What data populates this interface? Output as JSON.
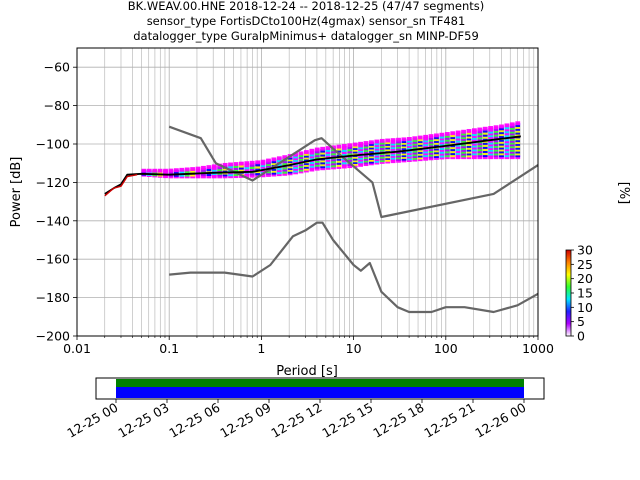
{
  "chart_data": {
    "type": "heatmap",
    "title": [
      "BK.WEAV.00.HNE   2018-12-24 -- 2018-12-25  (47/47 segments)",
      "sensor_type FortisDCto100Hz(4gmax) sensor_sn TF481",
      "datalogger_type GuralpMinimus+ datalogger_sn MINP-DF59"
    ],
    "xlabel": "Period [s]",
    "ylabel": "Power [dB]",
    "xscale": "log",
    "xlim": [
      0.01,
      1000
    ],
    "ylim": [
      -200,
      -50
    ],
    "grid": true,
    "x_ticks": [
      {
        "v": 0.01,
        "label": "0.01"
      },
      {
        "v": 0.1,
        "label": "0.1"
      },
      {
        "v": 1,
        "label": "1"
      },
      {
        "v": 10,
        "label": "10"
      },
      {
        "v": 100,
        "label": "100"
      },
      {
        "v": 1000,
        "label": "1000"
      }
    ],
    "y_ticks": [
      {
        "v": -60,
        "label": "−60"
      },
      {
        "v": -80,
        "label": "−80"
      },
      {
        "v": -100,
        "label": "−100"
      },
      {
        "v": -120,
        "label": "−120"
      },
      {
        "v": -140,
        "label": "−140"
      },
      {
        "v": -160,
        "label": "−160"
      },
      {
        "v": -180,
        "label": "−180"
      },
      {
        "v": -200,
        "label": "−200"
      }
    ],
    "series": [
      {
        "kind": "reference",
        "color": "#666666",
        "points": [
          [
            0.1,
            -91
          ],
          [
            0.22,
            -97
          ],
          [
            0.32,
            -110
          ],
          [
            0.8,
            -119
          ],
          [
            3.8,
            -98
          ],
          [
            4.5,
            -97
          ],
          [
            6.5,
            -104
          ],
          [
            16,
            -120
          ],
          [
            20,
            -138
          ],
          [
            330,
            -126
          ],
          [
            1000,
            -111
          ]
        ]
      },
      {
        "kind": "reference",
        "color": "#666666",
        "points": [
          [
            0.1,
            -168
          ],
          [
            0.17,
            -167
          ],
          [
            0.4,
            -167
          ],
          [
            0.8,
            -169
          ],
          [
            1.25,
            -163
          ],
          [
            2.2,
            -148
          ],
          [
            3.0,
            -145
          ],
          [
            4.0,
            -141
          ],
          [
            4.6,
            -141
          ],
          [
            6.0,
            -150
          ],
          [
            10,
            -163
          ],
          [
            12,
            -166
          ],
          [
            15,
            -162
          ],
          [
            20,
            -177
          ],
          [
            30,
            -185
          ],
          [
            40,
            -187.5
          ],
          [
            70,
            -187.5
          ],
          [
            100,
            -185
          ],
          [
            160,
            -185
          ],
          [
            330,
            -187.5
          ],
          [
            600,
            -184
          ],
          [
            1000,
            -178
          ]
        ]
      },
      {
        "kind": "mean",
        "color": "#000000",
        "points": [
          [
            0.02,
            -126
          ],
          [
            0.025,
            -123
          ],
          [
            0.03,
            -121
          ],
          [
            0.035,
            -116
          ],
          [
            0.05,
            -115.5
          ],
          [
            0.1,
            -116
          ],
          [
            0.3,
            -115
          ],
          [
            0.8,
            -114.5
          ],
          [
            2,
            -111
          ],
          [
            4,
            -108
          ],
          [
            10,
            -106
          ],
          [
            30,
            -104
          ],
          [
            100,
            -101
          ],
          [
            300,
            -98
          ],
          [
            650,
            -96
          ]
        ]
      },
      {
        "kind": "mode",
        "color": "#cc0000",
        "points": [
          [
            0.02,
            -127
          ],
          [
            0.025,
            -123
          ],
          [
            0.03,
            -122
          ],
          [
            0.035,
            -117
          ],
          [
            0.045,
            -116
          ]
        ]
      }
    ],
    "histogram_band": {
      "x": [
        0.05,
        0.1,
        0.2,
        0.4,
        1,
        2,
        4,
        10,
        20,
        40,
        100,
        200,
        400,
        650
      ],
      "center": [
        -115,
        -115.5,
        -115,
        -114,
        -113,
        -111,
        -108,
        -106,
        -104,
        -103,
        -101,
        -100,
        -99,
        -98
      ],
      "halfwidth": [
        1,
        1.5,
        2,
        3,
        3.5,
        4.5,
        5,
        5.5,
        5.5,
        5.5,
        6,
        7,
        8,
        9
      ]
    },
    "colorbar": {
      "label": "[%]",
      "range": [
        0,
        30
      ],
      "ticks": [
        {
          "v": 0,
          "label": "0"
        },
        {
          "v": 5,
          "label": "5"
        },
        {
          "v": 10,
          "label": "10"
        },
        {
          "v": 15,
          "label": "15"
        },
        {
          "v": 20,
          "label": "20"
        },
        {
          "v": 25,
          "label": "25"
        },
        {
          "v": 30,
          "label": "30"
        }
      ],
      "colors": [
        "#ffffff",
        "#b000ff",
        "#2020ff",
        "#00e8ff",
        "#30ff30",
        "#ffff00",
        "#ff8000",
        "#d00000"
      ]
    },
    "coverage": {
      "start": "2018-12-25 00:00",
      "end": "2018-12-26 00:00",
      "colors": {
        "data": "#0000ff",
        "segments": "#008000"
      },
      "ticks": [
        {
          "h": 0,
          "label": "12-25 00"
        },
        {
          "h": 3,
          "label": "12-25 03"
        },
        {
          "h": 6,
          "label": "12-25 06"
        },
        {
          "h": 9,
          "label": "12-25 09"
        },
        {
          "h": 12,
          "label": "12-25 12"
        },
        {
          "h": 15,
          "label": "12-25 15"
        },
        {
          "h": 18,
          "label": "12-25 18"
        },
        {
          "h": 21,
          "label": "12-25 21"
        },
        {
          "h": 24,
          "label": "12-26 00"
        }
      ]
    }
  }
}
